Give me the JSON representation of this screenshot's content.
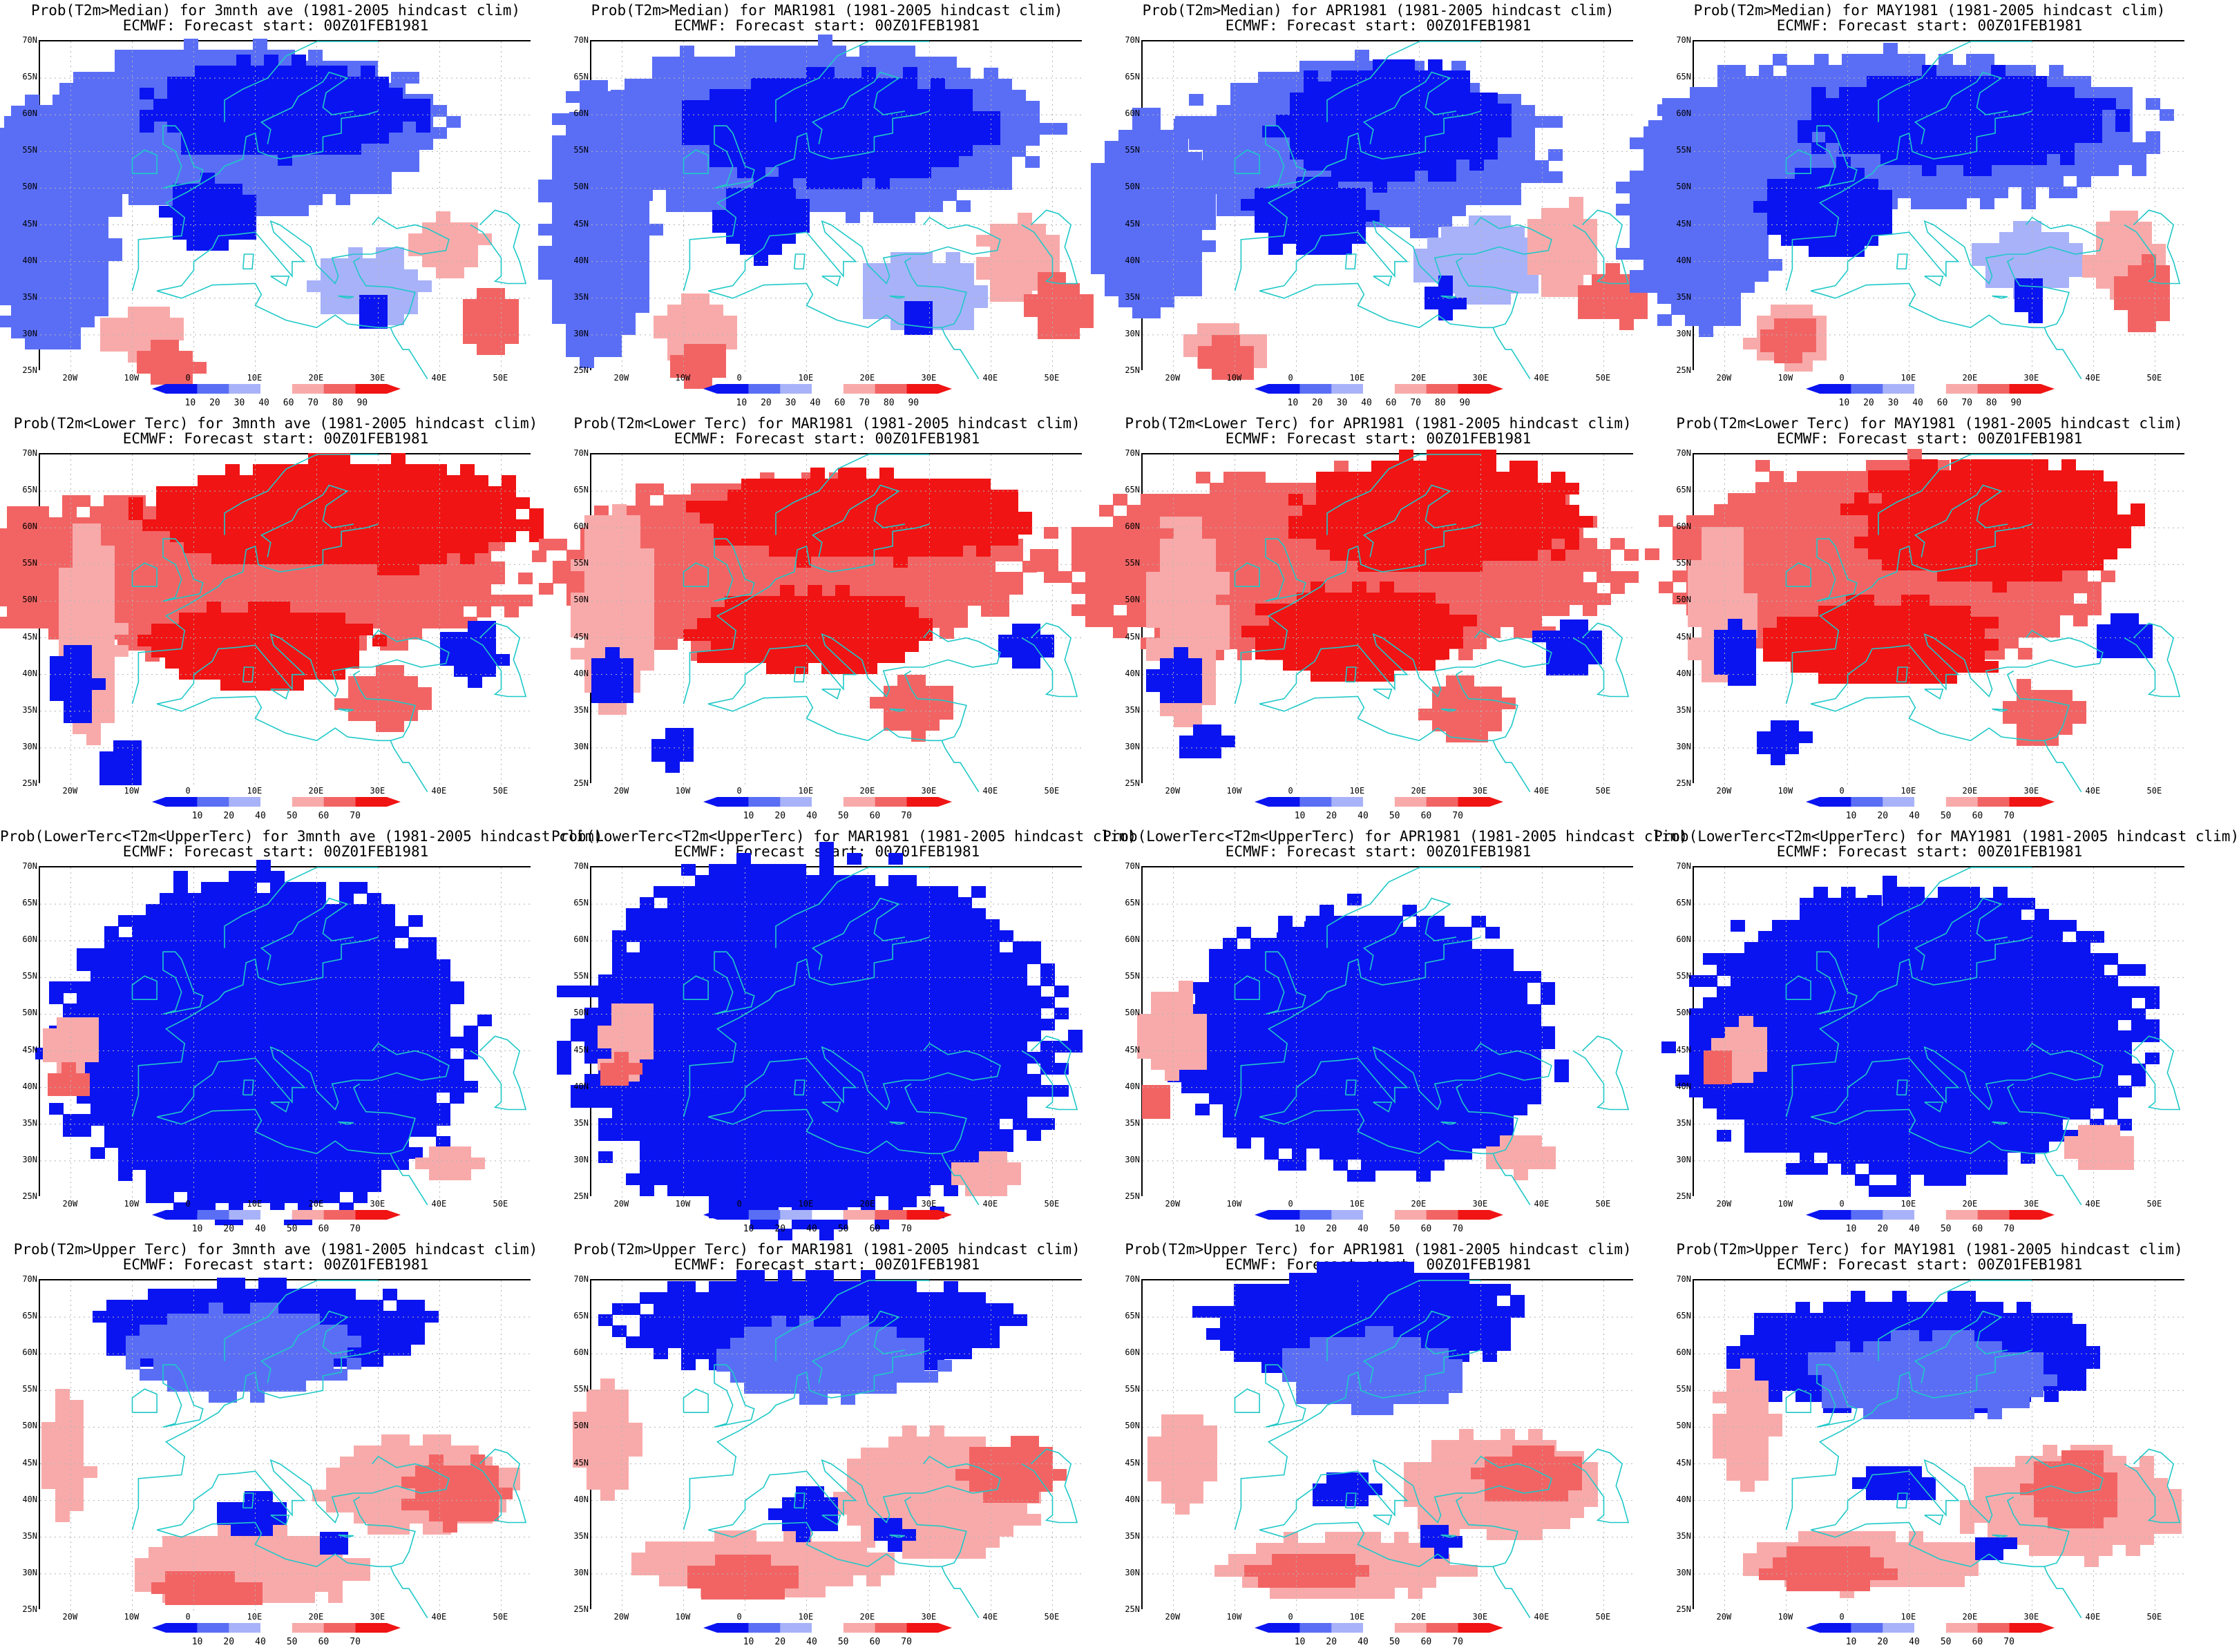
{
  "figure": {
    "rows": [
      {
        "colorbar_labels": [
          "10",
          "20",
          "30",
          "40",
          "60",
          "70",
          "80",
          "90"
        ],
        "panels": [
          {
            "title_line1": "Prob(T2m>Median) for 3mnth ave (1981-2005 hindcast clim)",
            "title_line2": "ECMWF: Forecast start: 00Z01FEB1981"
          },
          {
            "title_line1": "Prob(T2m>Median) for MAR1981 (1981-2005 hindcast clim)",
            "title_line2": "ECMWF: Forecast start: 00Z01FEB1981"
          },
          {
            "title_line1": "Prob(T2m>Median) for APR1981 (1981-2005 hindcast clim)",
            "title_line2": "ECMWF: Forecast start: 00Z01FEB1981"
          },
          {
            "title_line1": "Prob(T2m>Median) for MAY1981 (1981-2005 hindcast clim)",
            "title_line2": "ECMWF: Forecast start: 00Z01FEB1981"
          }
        ]
      },
      {
        "colorbar_labels": [
          "10",
          "20",
          "40",
          "50",
          "60",
          "70"
        ],
        "panels": [
          {
            "title_line1": "Prob(T2m<Lower Terc) for 3mnth ave (1981-2005 hindcast clim)",
            "title_line2": "ECMWF: Forecast start: 00Z01FEB1981"
          },
          {
            "title_line1": "Prob(T2m<Lower Terc) for MAR1981 (1981-2005 hindcast clim)",
            "title_line2": "ECMWF: Forecast start: 00Z01FEB1981"
          },
          {
            "title_line1": "Prob(T2m<Lower Terc) for APR1981 (1981-2005 hindcast clim)",
            "title_line2": "ECMWF: Forecast start: 00Z01FEB1981"
          },
          {
            "title_line1": "Prob(T2m<Lower Terc) for MAY1981 (1981-2005 hindcast clim)",
            "title_line2": "ECMWF: Forecast start: 00Z01FEB1981"
          }
        ]
      },
      {
        "colorbar_labels": [
          "10",
          "20",
          "40",
          "50",
          "60",
          "70"
        ],
        "panels": [
          {
            "title_line1": "Prob(LowerTerc<T2m<UpperTerc) for 3mnth ave (1981-2005 hindcast clim)",
            "title_line2": "ECMWF: Forecast start: 00Z01FEB1981"
          },
          {
            "title_line1": "Prob(LowerTerc<T2m<UpperTerc) for MAR1981 (1981-2005 hindcast clim)",
            "title_line2": "ECMWF: Forecast start: 00Z01FEB1981"
          },
          {
            "title_line1": "Prob(LowerTerc<T2m<UpperTerc) for APR1981 (1981-2005 hindcast clim)",
            "title_line2": "ECMWF: Forecast start: 00Z01FEB1981"
          },
          {
            "title_line1": "Prob(LowerTerc<T2m<UpperTerc) for MAY1981 (1981-2005 hindcast clim)",
            "title_line2": "ECMWF: Forecast start: 00Z01FEB1981"
          }
        ]
      },
      {
        "colorbar_labels": [
          "10",
          "20",
          "40",
          "50",
          "60",
          "70"
        ],
        "panels": [
          {
            "title_line1": "Prob(T2m>Upper Terc) for 3mnth ave (1981-2005 hindcast clim)",
            "title_line2": "ECMWF: Forecast start: 00Z01FEB1981"
          },
          {
            "title_line1": "Prob(T2m>Upper Terc) for MAR1981 (1981-2005 hindcast clim)",
            "title_line2": "ECMWF: Forecast start: 00Z01FEB1981"
          },
          {
            "title_line1": "Prob(T2m>Upper Terc) for APR1981 (1981-2005 hindcast clim)",
            "title_line2": "ECMWF: Forecast start: 00Z01FEB1981"
          },
          {
            "title_line1": "Prob(T2m>Upper Terc) for MAY1981 (1981-2005 hindcast clim)",
            "title_line2": "ECMWF: Forecast start: 00Z01FEB1981"
          }
        ]
      }
    ],
    "lat_labels": [
      "70N",
      "65N",
      "60N",
      "55N",
      "50N",
      "45N",
      "40N",
      "35N",
      "30N",
      "25N"
    ],
    "lon_labels": [
      "20W",
      "10W",
      "0",
      "10E",
      "20E",
      "30E",
      "40E",
      "50E"
    ],
    "colors": {
      "deep_blue": "#0a14f0",
      "mid_blue": "#5a6ef5",
      "light_blue": "#a8b2f8",
      "light_red": "#f8aaaa",
      "mid_red": "#f26464",
      "deep_red": "#f01414",
      "coast": "#20c8c8",
      "grid": "#b4b4b4"
    }
  }
}
